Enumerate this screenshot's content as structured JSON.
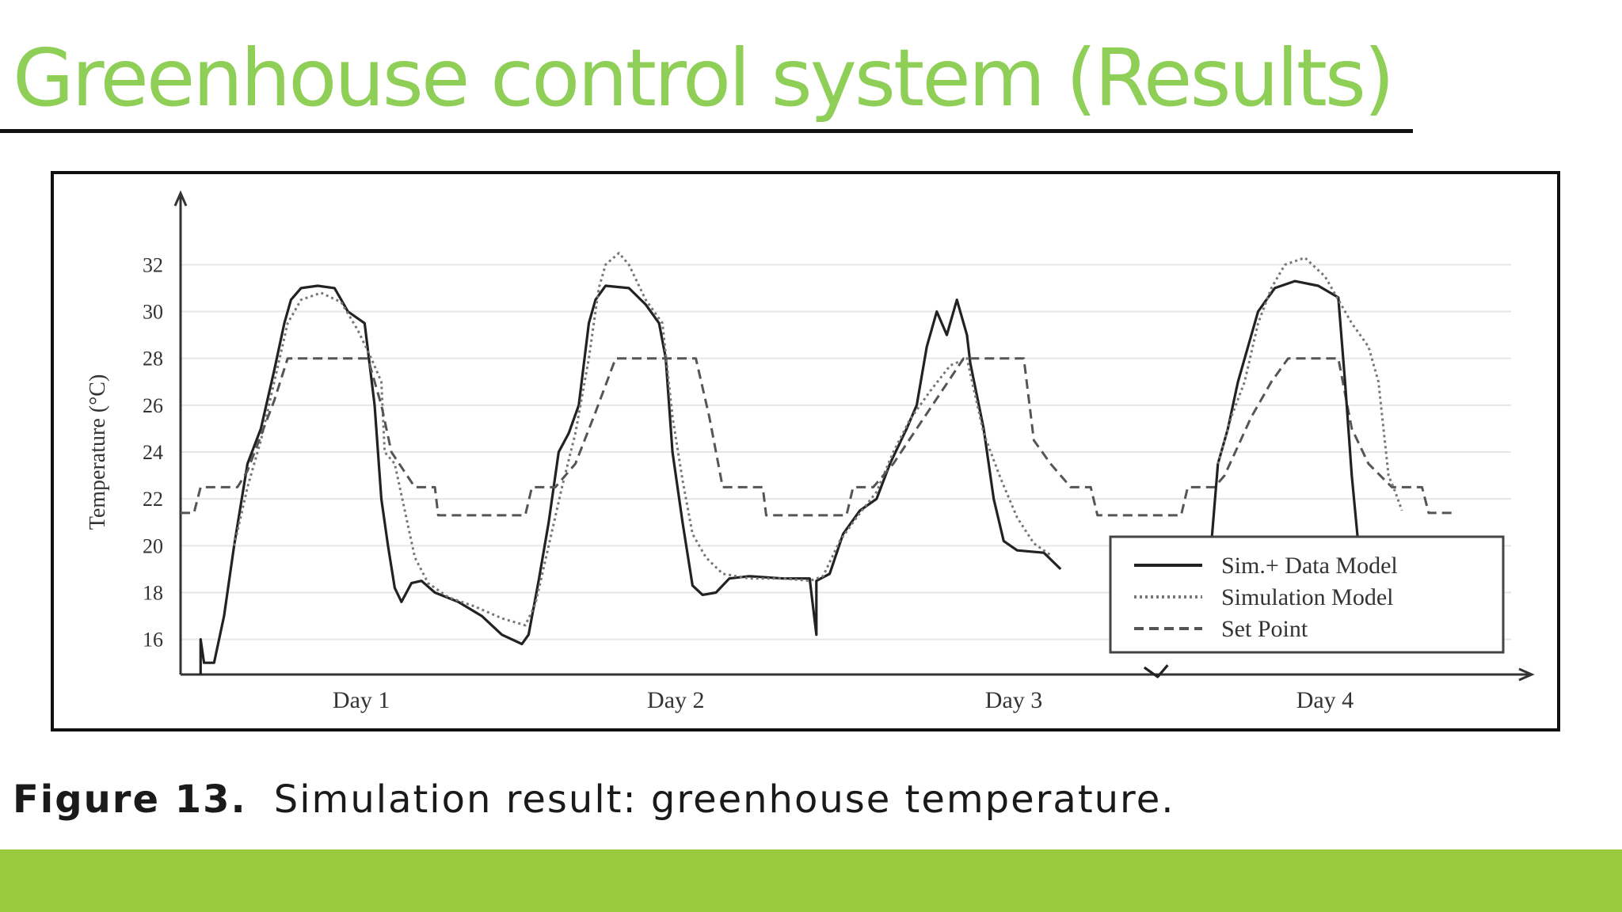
{
  "slide": {
    "title": "Greenhouse control system (Results)",
    "caption_label": "Figure 13.",
    "caption_text": "Simulation result: greenhouse temperature.",
    "accent_color": "#99c93c",
    "title_color": "#8fcf58"
  },
  "chart_data": {
    "type": "line",
    "title": "",
    "xlabel": "",
    "ylabel": "Temperature (°C)",
    "xlim": [
      0,
      4
    ],
    "ylim": [
      14.5,
      33.5
    ],
    "yticks": [
      16,
      18,
      20,
      22,
      24,
      26,
      28,
      30,
      32
    ],
    "xtick_labels": [
      {
        "x": 0.54,
        "label": "Day 1"
      },
      {
        "x": 1.48,
        "label": "Day 2"
      },
      {
        "x": 2.49,
        "label": "Day 3"
      },
      {
        "x": 3.42,
        "label": "Day 4"
      }
    ],
    "grid": true,
    "legend_position": "bottom-right",
    "series": [
      {
        "name": "Sim.+ Data Model",
        "style": "solid",
        "color": "#222222",
        "points": [
          [
            0.06,
            14.5
          ],
          [
            0.06,
            16
          ],
          [
            0.07,
            15
          ],
          [
            0.1,
            15
          ],
          [
            0.13,
            17
          ],
          [
            0.16,
            20
          ],
          [
            0.2,
            23.5
          ],
          [
            0.24,
            25
          ],
          [
            0.28,
            27.5
          ],
          [
            0.31,
            29.5
          ],
          [
            0.33,
            30.5
          ],
          [
            0.36,
            31
          ],
          [
            0.41,
            31.1
          ],
          [
            0.46,
            31
          ],
          [
            0.5,
            30
          ],
          [
            0.55,
            29.5
          ],
          [
            0.58,
            26
          ],
          [
            0.6,
            22
          ],
          [
            0.62,
            20
          ],
          [
            0.64,
            18.2
          ],
          [
            0.66,
            17.6
          ],
          [
            0.69,
            18.4
          ],
          [
            0.72,
            18.5
          ],
          [
            0.76,
            18
          ],
          [
            0.83,
            17.6
          ],
          [
            0.9,
            17
          ],
          [
            0.96,
            16.2
          ],
          [
            1.02,
            15.8
          ],
          [
            1.04,
            16.2
          ],
          [
            1.07,
            18.5
          ],
          [
            1.1,
            21
          ],
          [
            1.13,
            24
          ],
          [
            1.16,
            24.8
          ],
          [
            1.19,
            26
          ],
          [
            1.22,
            29.5
          ],
          [
            1.24,
            30.5
          ],
          [
            1.27,
            31.1
          ],
          [
            1.34,
            31
          ],
          [
            1.39,
            30.3
          ],
          [
            1.43,
            29.5
          ],
          [
            1.45,
            28
          ],
          [
            1.47,
            24
          ],
          [
            1.5,
            21
          ],
          [
            1.53,
            18.3
          ],
          [
            1.56,
            17.9
          ],
          [
            1.6,
            18
          ],
          [
            1.64,
            18.6
          ],
          [
            1.7,
            18.7
          ],
          [
            1.8,
            18.6
          ],
          [
            1.88,
            18.6
          ],
          [
            1.9,
            16.2
          ],
          [
            1.9,
            18.5
          ],
          [
            1.94,
            18.8
          ],
          [
            1.98,
            20.5
          ],
          [
            2.03,
            21.5
          ],
          [
            2.08,
            22
          ],
          [
            2.12,
            23.5
          ],
          [
            2.17,
            25
          ],
          [
            2.2,
            26
          ],
          [
            2.23,
            28.5
          ],
          [
            2.26,
            30
          ],
          [
            2.29,
            29
          ],
          [
            2.32,
            30.5
          ],
          [
            2.35,
            29
          ],
          [
            2.36,
            27.8
          ],
          [
            2.4,
            25
          ],
          [
            2.43,
            22
          ],
          [
            2.46,
            20.2
          ],
          [
            2.5,
            19.8
          ],
          [
            2.58,
            19.7
          ],
          [
            2.63,
            19
          ]
        ]
      },
      {
        "name": "Simulation Model",
        "style": "dotted",
        "color": "#777777",
        "points": [
          [
            0.16,
            20
          ],
          [
            0.2,
            22.5
          ],
          [
            0.24,
            24.5
          ],
          [
            0.28,
            27
          ],
          [
            0.32,
            29.5
          ],
          [
            0.36,
            30.5
          ],
          [
            0.42,
            30.8
          ],
          [
            0.48,
            30.4
          ],
          [
            0.53,
            29.2
          ],
          [
            0.57,
            28
          ],
          [
            0.6,
            27
          ],
          [
            0.61,
            24
          ],
          [
            0.64,
            23.5
          ],
          [
            0.67,
            21.5
          ],
          [
            0.7,
            19.5
          ],
          [
            0.74,
            18.4
          ],
          [
            0.8,
            17.8
          ],
          [
            0.88,
            17.4
          ],
          [
            0.96,
            16.9
          ],
          [
            1.03,
            16.6
          ],
          [
            1.06,
            17.5
          ],
          [
            1.1,
            20
          ],
          [
            1.14,
            22.5
          ],
          [
            1.18,
            24.8
          ],
          [
            1.22,
            28
          ],
          [
            1.25,
            31
          ],
          [
            1.27,
            32
          ],
          [
            1.31,
            32.5
          ],
          [
            1.34,
            32
          ],
          [
            1.39,
            30.5
          ],
          [
            1.44,
            29.5
          ],
          [
            1.47,
            25.5
          ],
          [
            1.5,
            22.8
          ],
          [
            1.53,
            20.5
          ],
          [
            1.57,
            19.5
          ],
          [
            1.62,
            18.8
          ],
          [
            1.7,
            18.6
          ],
          [
            1.8,
            18.6
          ],
          [
            1.88,
            18.5
          ],
          [
            1.92,
            18.7
          ],
          [
            1.97,
            20.2
          ],
          [
            2.02,
            21.2
          ],
          [
            2.08,
            22.3
          ],
          [
            2.13,
            24
          ],
          [
            2.18,
            25.4
          ],
          [
            2.24,
            26.6
          ],
          [
            2.3,
            27.7
          ],
          [
            2.35,
            28
          ],
          [
            2.4,
            24.8
          ],
          [
            2.45,
            22.9
          ],
          [
            2.5,
            21.2
          ],
          [
            2.55,
            20.1
          ],
          [
            2.6,
            19.6
          ]
        ]
      },
      {
        "name": "Set Point",
        "style": "dashed",
        "color": "#555555",
        "points": [
          [
            0,
            21.4
          ],
          [
            0.04,
            21.4
          ],
          [
            0.06,
            22.5
          ],
          [
            0.17,
            22.5
          ],
          [
            0.2,
            23.2
          ],
          [
            0.28,
            26.2
          ],
          [
            0.32,
            28
          ],
          [
            0.56,
            28
          ],
          [
            0.6,
            26
          ],
          [
            0.63,
            24
          ],
          [
            0.7,
            22.5
          ],
          [
            0.76,
            22.5
          ],
          [
            0.77,
            21.3
          ],
          [
            1.03,
            21.3
          ],
          [
            1.05,
            22.5
          ],
          [
            1.12,
            22.5
          ],
          [
            1.18,
            23.5
          ],
          [
            1.24,
            25.7
          ],
          [
            1.3,
            28
          ],
          [
            1.54,
            28
          ],
          [
            1.58,
            25.5
          ],
          [
            1.62,
            22.5
          ],
          [
            1.74,
            22.5
          ],
          [
            1.75,
            21.3
          ],
          [
            1.99,
            21.3
          ],
          [
            2.01,
            22.5
          ],
          [
            2.07,
            22.5
          ],
          [
            2.13,
            23.5
          ],
          [
            2.2,
            25
          ],
          [
            2.27,
            26.5
          ],
          [
            2.34,
            28
          ],
          [
            2.52,
            28
          ],
          [
            2.55,
            24.5
          ],
          [
            2.6,
            23.5
          ],
          [
            2.66,
            22.5
          ],
          [
            2.72,
            22.5
          ],
          [
            2.74,
            21.3
          ],
          [
            2.99,
            21.3
          ],
          [
            3.01,
            22.5
          ],
          [
            3.09,
            22.5
          ],
          [
            3.12,
            23
          ],
          [
            3.2,
            25.5
          ],
          [
            3.26,
            27
          ],
          [
            3.31,
            28
          ],
          [
            3.46,
            28
          ],
          [
            3.5,
            25
          ],
          [
            3.55,
            23.5
          ],
          [
            3.62,
            22.5
          ],
          [
            3.71,
            22.5
          ],
          [
            3.73,
            21.4
          ],
          [
            3.8,
            21.4
          ]
        ]
      },
      {
        "name": "",
        "style": "solid",
        "color": "#222222",
        "points": [
          [
            3.08,
            20
          ],
          [
            3.1,
            23.5
          ],
          [
            3.13,
            25
          ],
          [
            3.16,
            27
          ],
          [
            3.19,
            28.5
          ],
          [
            3.22,
            30
          ],
          [
            3.27,
            31
          ],
          [
            3.33,
            31.3
          ],
          [
            3.4,
            31.1
          ],
          [
            3.46,
            30.6
          ],
          [
            3.48,
            27
          ],
          [
            3.5,
            23
          ],
          [
            3.52,
            20
          ]
        ]
      },
      {
        "name": "",
        "style": "solid",
        "color": "#222222",
        "points": [
          [
            2.88,
            14.8
          ],
          [
            2.92,
            14.4
          ],
          [
            2.95,
            14.9
          ]
        ]
      },
      {
        "name": "",
        "style": "dotted",
        "color": "#777777",
        "points": [
          [
            3.1,
            23.5
          ],
          [
            3.14,
            25.5
          ],
          [
            3.18,
            27
          ],
          [
            3.22,
            29.5
          ],
          [
            3.26,
            31
          ],
          [
            3.3,
            32
          ],
          [
            3.36,
            32.3
          ],
          [
            3.42,
            31.5
          ],
          [
            3.5,
            29.5
          ],
          [
            3.55,
            28.5
          ],
          [
            3.58,
            27
          ],
          [
            3.61,
            23
          ],
          [
            3.63,
            22.3
          ],
          [
            3.65,
            21.5
          ]
        ]
      }
    ]
  }
}
